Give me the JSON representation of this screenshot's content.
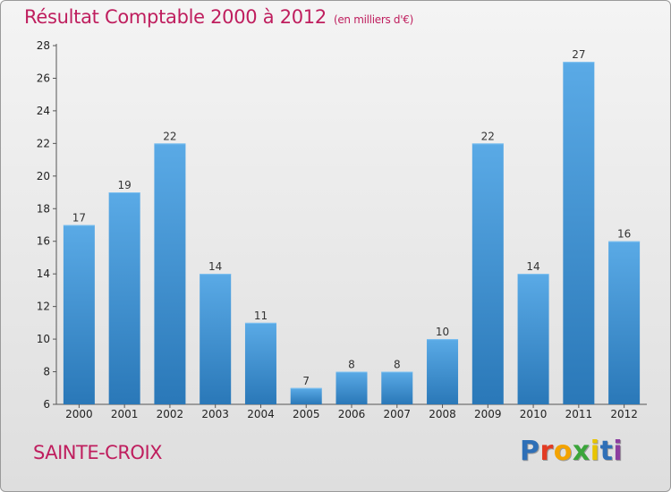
{
  "title": "Résultat Comptable 2000 à 2012",
  "subtitle": "(en milliers d'€)",
  "city": "SAINTE-CROIX",
  "logo": {
    "letters": [
      "P",
      "r",
      "o",
      "x",
      "i",
      "t",
      "i"
    ],
    "colors": [
      "#2e6fb7",
      "#e23b23",
      "#f3a300",
      "#3aa53a",
      "#e8c400",
      "#2e6fb7",
      "#8c3da0"
    ]
  },
  "colors": {
    "accent": "#bf1e5e",
    "bar_light": "#5aaae6",
    "bar_dark": "#2a78b8"
  },
  "chart_data": {
    "type": "bar",
    "title": "Résultat Comptable 2000 à 2012",
    "xlabel": "",
    "ylabel": "",
    "categories": [
      "2000",
      "2001",
      "2002",
      "2003",
      "2004",
      "2005",
      "2006",
      "2007",
      "2008",
      "2009",
      "2010",
      "2011",
      "2012"
    ],
    "values": [
      17,
      19,
      22,
      14,
      11,
      7,
      8,
      8,
      10,
      22,
      14,
      27,
      16
    ],
    "ylim": [
      6,
      28
    ],
    "yticks": [
      6,
      8,
      10,
      12,
      14,
      16,
      18,
      20,
      22,
      24,
      26,
      28
    ],
    "grid": false,
    "legend": "none"
  }
}
